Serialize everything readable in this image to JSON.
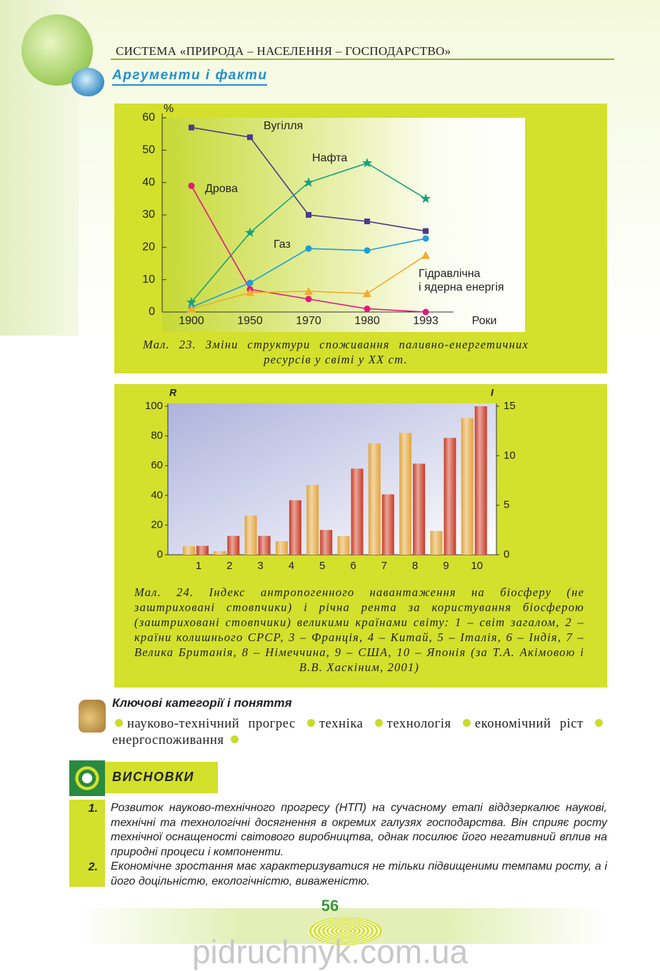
{
  "header": "СИСТЕМА «ПРИРОДА – НАСЕЛЕННЯ – ГОСПОДАРСТВО»",
  "section_title": "Аргументи і факти",
  "chart_data": [
    {
      "type": "line",
      "y_label": "%",
      "x_label": "Роки",
      "categories": [
        "1900",
        "1950",
        "1970",
        "1980",
        "1993"
      ],
      "ylim": [
        0,
        60
      ],
      "yticks": [
        0,
        10,
        20,
        30,
        40,
        50,
        60
      ],
      "series": [
        {
          "name": "Вугілля",
          "color": "#4a3b8c",
          "marker": "square",
          "values": [
            57,
            54,
            30,
            28,
            25
          ]
        },
        {
          "name": "Нафта",
          "color": "#17a27a",
          "marker": "star",
          "values": [
            3,
            24.5,
            40,
            46,
            35
          ]
        },
        {
          "name": "Дрова",
          "color": "#e0197d",
          "marker": "circle",
          "values": [
            39,
            7,
            4,
            1,
            0
          ]
        },
        {
          "name": "Газ",
          "color": "#1ba0d8",
          "marker": "circle",
          "values": [
            1.5,
            9,
            19.6,
            19,
            22.7
          ]
        },
        {
          "name": "Гідравлічна\nі ядерна енергія",
          "color": "#f5ac2a",
          "marker": "triangle",
          "values": [
            1,
            6,
            6.4,
            5.7,
            17.5
          ]
        }
      ],
      "caption": "Мал. 23. Зміни структури споживання паливно-енергетичних ресурсів у світі у XX ст."
    },
    {
      "type": "bar",
      "y_label": "R",
      "y2_label": "I",
      "categories": [
        "1",
        "2",
        "3",
        "4",
        "5",
        "6",
        "7",
        "8",
        "9",
        "10"
      ],
      "ylim": [
        0,
        100
      ],
      "yticks": [
        0,
        20,
        40,
        60,
        80,
        100
      ],
      "y2lim": [
        0,
        15
      ],
      "y2ticks": [
        0,
        5,
        10,
        15
      ],
      "series": [
        {
          "color": "#e3a43a",
          "values": [
            5.8,
            2.4,
            26.4,
            9.1,
            47,
            12.5,
            75,
            82,
            16,
            92
          ]
        },
        {
          "color": "#c93a22",
          "axis": "y2",
          "values": [
            0.9,
            1.9,
            1.9,
            5.5,
            2.5,
            8.7,
            6.1,
            9.2,
            11.8,
            15
          ]
        }
      ],
      "caption": "Мал. 24. Індекс антропогенного навантаження на біосферу (не заштриховані стовпчики) і річна рента за користування біосферою (заштриховані стовпчики) великими країнами світу: 1 – світ загалом, 2 – країни колишнього СРСР, 3 – Франція, 4 – Китай, 5 – Італія, 6 – Індія, 7 – Велика Британія, 8 – Німеччина, 9 – США, 10 – Японія (за Т.А. Акімовою і В.В. Хаскіним, 2001)"
    }
  ],
  "key_concepts": {
    "title": "Ключові категорії і поняття",
    "items": [
      "науково-технічний прогрес",
      "техніка",
      "технологія",
      "економічний ріст",
      "енергоспоживання"
    ]
  },
  "conclusions": {
    "title": "ВИСНОВКИ",
    "items": [
      {
        "number": "1.",
        "text": "Розвиток науково-технічного прогресу (НТП) на сучасному етапі віддзеркалює наукові, технічні та технологічні досягнення в окремих галузях господарства. Він сприяє росту технічної оснащеності світового виробництва, однак посилює його негативний вплив на природні процеси і компоненти."
      },
      {
        "number": "2.",
        "text": "Економічне зростання має характеризуватися не тільки підвищеними темпами росту, а і його доцільністю, екологічністю, виваженістю."
      }
    ]
  },
  "page_number": "56",
  "watermark": "pidruchnyk.com.ua"
}
